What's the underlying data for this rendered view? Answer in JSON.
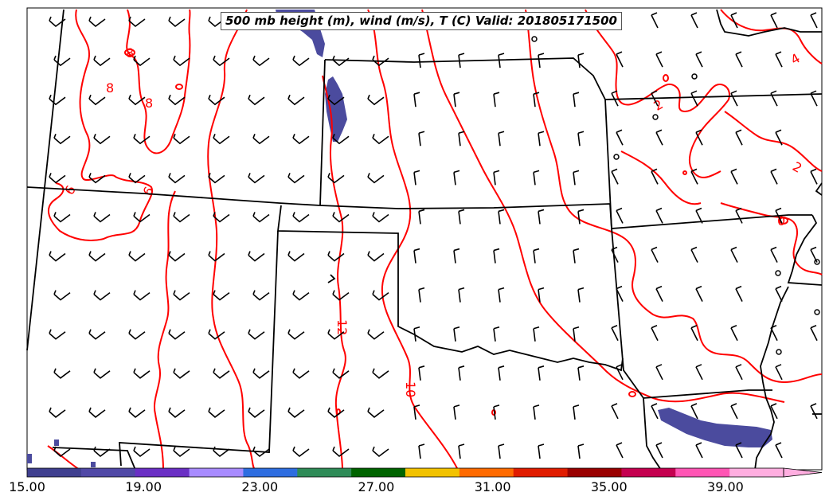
{
  "title": "500 mb height (m), wind (m/s), T (C) Valid: 201805171500",
  "colorbar": {
    "tick_labels": [
      "15.00",
      "19.00",
      "23.00",
      "27.00",
      "31.00",
      "35.00",
      "39.00"
    ],
    "colors": [
      "#3f3f8f",
      "#5048a6",
      "#6a2fc4",
      "#a88bff",
      "#2e6de0",
      "#2e8b57",
      "#006400",
      "#f2c200",
      "#ff6a00",
      "#e01c00",
      "#990000",
      "#c4004f",
      "#ff55b4",
      "#ffaee0"
    ],
    "extend": "max"
  },
  "contour_labels": [
    "8",
    "8",
    "8",
    "6",
    "12",
    "10",
    "2",
    "2",
    "4",
    "6",
    "0"
  ],
  "colors": {
    "temperature_contour": "#ff0000",
    "state_border": "#000000",
    "wind_barb": "#000000",
    "height_fill": "#4b4b9e"
  }
}
